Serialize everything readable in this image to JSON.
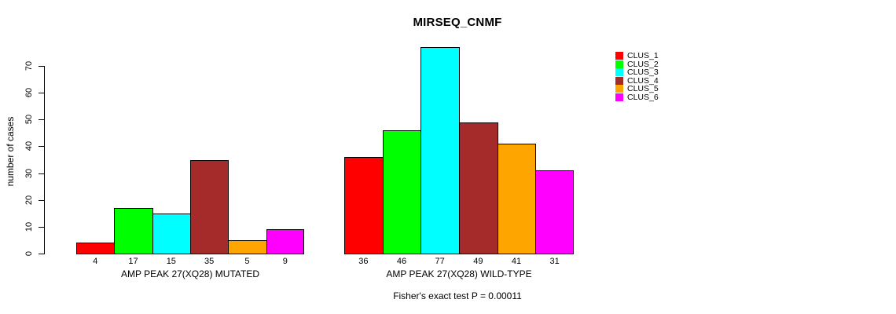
{
  "chart_data": {
    "type": "bar",
    "title": "MIRSEQ_CNMF",
    "ylabel": "number of cases",
    "xlabel": "",
    "ylim": [
      0,
      70
    ],
    "yticks": [
      0,
      10,
      20,
      30,
      40,
      50,
      60,
      70
    ],
    "grid": false,
    "legend_position": "right",
    "legend": [
      "CLUS_1",
      "CLUS_2",
      "CLUS_3",
      "CLUS_4",
      "CLUS_5",
      "CLUS_6"
    ],
    "colors": [
      "#ff0000",
      "#00ff00",
      "#00ffff",
      "#a52a2a",
      "#ffa500",
      "#ff00ff"
    ],
    "groups": [
      {
        "label": "AMP PEAK 27(XQ28) MUTATED",
        "values": [
          4,
          17,
          15,
          35,
          5,
          9
        ]
      },
      {
        "label": "AMP PEAK 27(XQ28) WILD-TYPE",
        "values": [
          36,
          46,
          77,
          49,
          41,
          31
        ]
      }
    ],
    "bar_value_labels": [
      [
        4,
        17,
        15,
        35,
        5,
        9
      ],
      [
        36,
        46,
        77,
        49,
        41,
        31
      ]
    ],
    "annotation": "Fisher's exact test P = 0.00011"
  }
}
